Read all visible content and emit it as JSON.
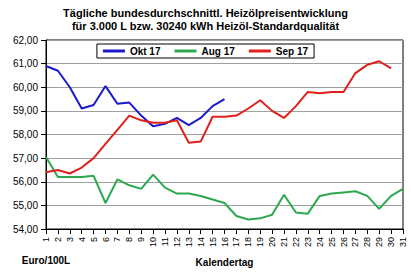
{
  "chart_data": {
    "type": "line",
    "title": "Tägliche bundesdurchschnittl. Heizölpreisentwicklung",
    "subtitle": "für 3.000 L bzw. 30240 kWh Heizöl-Standardqualität",
    "x_label": "Kalendertag",
    "y_label": "Euro/100L",
    "categories": [
      "1",
      "2",
      "3",
      "4",
      "5",
      "6",
      "7",
      "8",
      "9",
      "10",
      "11",
      "12",
      "13",
      "14",
      "15",
      "16",
      "17",
      "18",
      "19",
      "20",
      "21",
      "22",
      "23",
      "24",
      "25",
      "26",
      "27",
      "28",
      "29",
      "30",
      "31"
    ],
    "series": [
      {
        "name": "Okt 17",
        "color": "#1a1acc",
        "values": [
          60.9,
          60.7,
          60.0,
          59.1,
          59.25,
          60.05,
          59.3,
          59.35,
          58.8,
          58.35,
          58.45,
          58.7,
          58.4,
          58.7,
          59.2,
          59.5,
          null,
          null,
          null,
          null,
          null,
          null,
          null,
          null,
          null,
          null,
          null,
          null,
          null,
          null,
          null
        ]
      },
      {
        "name": "Aug 17",
        "color": "#2ea84f",
        "values": [
          57.05,
          56.2,
          56.2,
          56.2,
          56.25,
          55.1,
          56.1,
          55.85,
          55.7,
          56.3,
          55.75,
          55.5,
          55.5,
          55.4,
          55.25,
          55.1,
          54.55,
          54.4,
          54.45,
          54.6,
          55.45,
          54.7,
          54.65,
          55.4,
          55.5,
          55.55,
          55.6,
          55.4,
          54.85,
          55.4,
          55.7
        ]
      },
      {
        "name": "Sep 17",
        "color": "#e0201b",
        "values": [
          56.4,
          56.5,
          56.35,
          56.6,
          57.0,
          57.6,
          58.2,
          58.8,
          58.6,
          58.5,
          58.5,
          58.6,
          57.65,
          57.7,
          58.75,
          58.75,
          58.8,
          59.1,
          59.45,
          59.0,
          58.7,
          59.2,
          59.8,
          59.75,
          59.8,
          59.8,
          60.6,
          60.95,
          61.1,
          60.8,
          null
        ]
      }
    ],
    "ylim": [
      54,
      62
    ],
    "yticks": [
      {
        "value": 54,
        "label": "54,00"
      },
      {
        "value": 55,
        "label": "55,00"
      },
      {
        "value": 56,
        "label": "56,00"
      },
      {
        "value": 57,
        "label": "57,00"
      },
      {
        "value": 58,
        "label": "58,00"
      },
      {
        "value": 59,
        "label": "59,00"
      },
      {
        "value": 60,
        "label": "60,00"
      },
      {
        "value": 61,
        "label": "61,00"
      },
      {
        "value": 62,
        "label": "62,00"
      }
    ],
    "grid": true,
    "legend": "top"
  }
}
